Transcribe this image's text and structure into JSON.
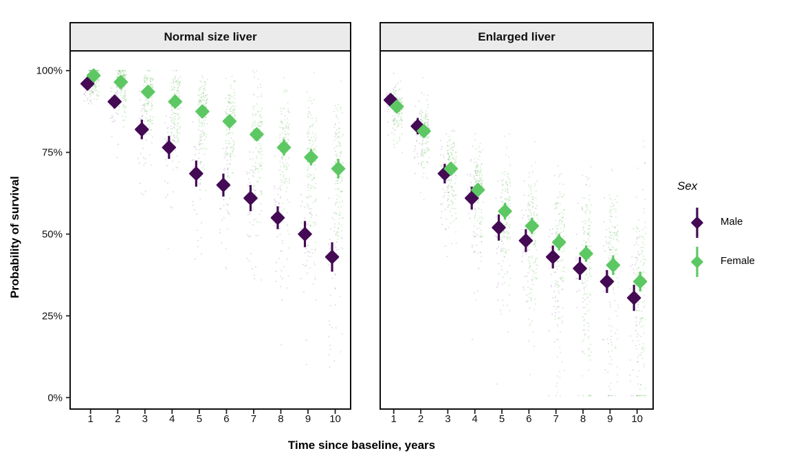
{
  "chart_data": {
    "type": "scatter",
    "title": "",
    "xlabel": "Time since baseline, years",
    "ylabel": "Probability of survival",
    "x": [
      1,
      2,
      3,
      4,
      5,
      6,
      7,
      8,
      9,
      10
    ],
    "ylim": [
      0,
      100
    ],
    "grid": false,
    "yticks": [
      {
        "value": 0,
        "label": "0%"
      },
      {
        "value": 25,
        "label": "25%"
      },
      {
        "value": 50,
        "label": "50%"
      },
      {
        "value": 75,
        "label": "75%"
      },
      {
        "value": 100,
        "label": "100%"
      }
    ],
    "legend": {
      "title": "Sex",
      "position": "right",
      "entries": [
        {
          "label": "Male",
          "color": "#440a54"
        },
        {
          "label": "Female",
          "color": "#5dc863"
        }
      ]
    },
    "facets": [
      {
        "label": "Normal size liver",
        "series": [
          {
            "name": "Male",
            "color": "#440a54",
            "estimates": [
              96,
              90.5,
              82,
              76.5,
              68.5,
              65,
              61,
              55,
              50,
              43
            ],
            "lower": [
              94.5,
              88.5,
              79,
              73,
              64.5,
              61.5,
              57,
              51.5,
              46,
              38.5
            ],
            "upper": [
              97.5,
              92.5,
              85,
              80,
              72.5,
              68.5,
              65,
              58.5,
              54,
              47.5
            ]
          },
          {
            "name": "Female",
            "color": "#5dc863",
            "estimates": [
              98.5,
              96.5,
              93.5,
              90.5,
              87.5,
              84.5,
              80.5,
              76.5,
              73.5,
              70
            ],
            "lower": [
              97.5,
              95.5,
              92,
              89,
              85.5,
              82.5,
              78.5,
              74,
              71,
              67
            ],
            "upper": [
              99.5,
              97.5,
              95,
              92,
              89.5,
              86.5,
              82.5,
              79,
              76,
              73
            ]
          }
        ]
      },
      {
        "label": "Enlarged liver",
        "series": [
          {
            "name": "Male",
            "color": "#440a54",
            "estimates": [
              91,
              83,
              68.5,
              61,
              52,
              48,
              43,
              39.5,
              35.5,
              30.5
            ],
            "lower": [
              89,
              80.5,
              65.5,
              57.5,
              48,
              44.5,
              39.5,
              36,
              32,
              26.5
            ],
            "upper": [
              93,
              85.5,
              71.5,
              64.5,
              56,
              51.5,
              46.5,
              43,
              39,
              34.5
            ]
          },
          {
            "name": "Female",
            "color": "#5dc863",
            "estimates": [
              89,
              81.5,
              70,
              63.5,
              57,
              52.5,
              47.5,
              44,
              40.5,
              35.5
            ],
            "lower": [
              87.5,
              79.5,
              68,
              61.5,
              54.5,
              50,
              45,
              41.5,
              37.5,
              32.5
            ],
            "upper": [
              90.5,
              83.5,
              72,
              65.5,
              59.5,
              55,
              50,
              46.5,
              43.5,
              38.5
            ]
          }
        ]
      }
    ],
    "draws_cloud": {
      "n_per_group": {
        "Male": 35,
        "Female": 140
      },
      "colors": {
        "Male": "rgba(163,124,181,0.30)",
        "Female": "rgba(124,199,116,0.32)"
      },
      "sd": {
        "Normal size liver": {
          "Male": [
            3,
            5,
            6.5,
            8,
            9,
            10,
            11,
            12,
            13,
            14
          ],
          "Female": [
            2.5,
            3.5,
            5,
            6,
            7,
            8,
            9.5,
            11,
            12.5,
            14
          ]
        },
        "Enlarged liver": {
          "Male": [
            4,
            6,
            8,
            10,
            11,
            12,
            13,
            14,
            15,
            16
          ],
          "Female": [
            3.5,
            5,
            7,
            9,
            10.5,
            12,
            13.5,
            15,
            16,
            17
          ]
        }
      }
    }
  }
}
